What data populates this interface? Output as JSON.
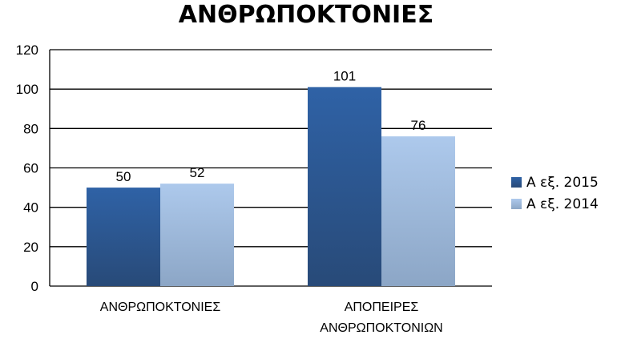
{
  "chart_data": {
    "type": "bar",
    "title": "ΑΝΘΡΩΠΟΚΤΟΝΙΕΣ",
    "xlabel": "",
    "ylabel": "",
    "categories": [
      [
        "ΑΝΘΡΩΠΟΚΤΟΝΙΕΣ"
      ],
      [
        "ΑΠΟΠΕΙΡΕΣ",
        "ΑΝΘΡΩΠΟΚΤΟΝΙΩΝ"
      ]
    ],
    "series": [
      {
        "name": "Α εξ. 2015",
        "values": [
          50,
          101
        ],
        "color": "#2f5d99"
      },
      {
        "name": "Α εξ. 2014",
        "values": [
          52,
          76
        ],
        "color": "#a9c4e6"
      }
    ],
    "ylim": [
      0,
      120
    ],
    "yticks": [
      0,
      20,
      40,
      60,
      80,
      100,
      120
    ],
    "grid": true,
    "legend": "right"
  }
}
